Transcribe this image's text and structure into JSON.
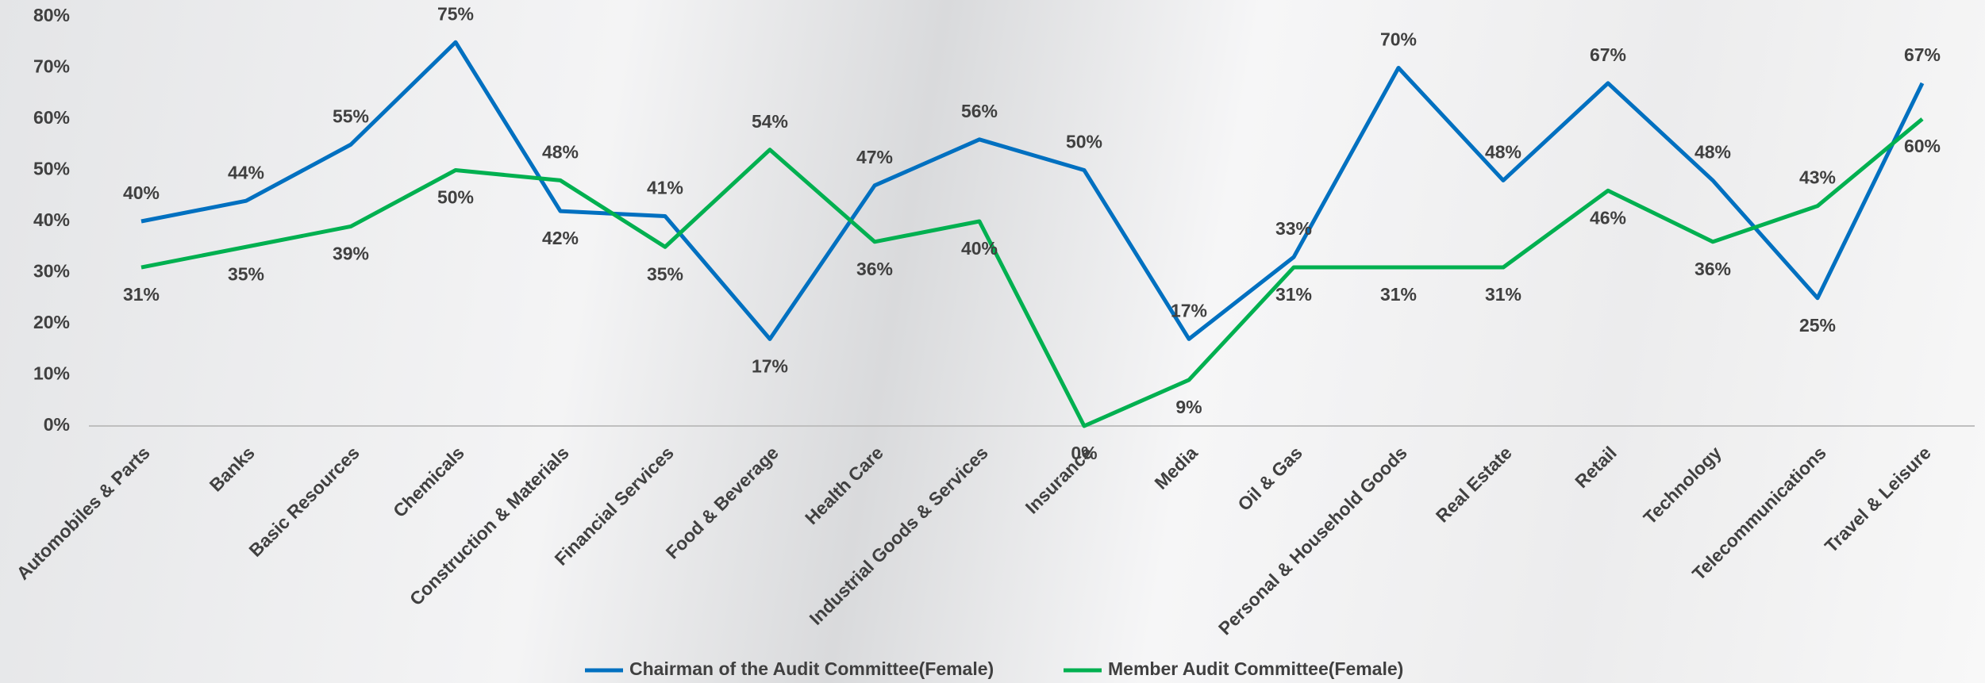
{
  "chart_data": {
    "type": "line",
    "categories": [
      "Automobiles & Parts",
      "Banks",
      "Basic Resources",
      "Chemicals",
      "Construction & Materials",
      "Financial Services",
      "Food & Beverage",
      "Health Care",
      "Industrial Goods & Services",
      "Insurance",
      "Media",
      "Oil & Gas",
      "Personal & Household Goods",
      "Real Estate",
      "Retail",
      "Technology",
      "Telecommunications",
      "Travel & Leisure"
    ],
    "series": [
      {
        "name": "Chairman of the Audit Committee(Female)",
        "color": "#0070c0",
        "values": [
          40,
          44,
          55,
          75,
          42,
          41,
          17,
          47,
          56,
          50,
          17,
          33,
          70,
          48,
          67,
          48,
          25,
          67
        ],
        "value_labels": [
          "40%",
          "44%",
          "55%",
          "75%",
          "42%",
          "41%",
          "17%",
          "47%",
          "56%",
          "50%",
          "17%",
          "33%",
          "70%",
          "48%",
          "67%",
          "48%",
          "25%",
          "67%"
        ]
      },
      {
        "name": "Member Audit Committee(Female)",
        "color": "#00b050",
        "values": [
          31,
          35,
          39,
          50,
          48,
          35,
          54,
          36,
          40,
          0,
          9,
          31,
          31,
          31,
          46,
          36,
          43,
          60
        ],
        "value_labels": [
          "31%",
          "35%",
          "39%",
          "50%",
          "48%",
          "35%",
          "54%",
          "36%",
          "40%",
          "0%",
          "9%",
          "31%",
          "31%",
          "31%",
          "46%",
          "36%",
          "43%",
          "60%"
        ]
      }
    ],
    "ylim": [
      0,
      80
    ],
    "yticks": [
      {
        "value": 0,
        "label": "0%"
      },
      {
        "value": 10,
        "label": "10%"
      },
      {
        "value": 20,
        "label": "20%"
      },
      {
        "value": 30,
        "label": "30%"
      },
      {
        "value": 40,
        "label": "40%"
      },
      {
        "value": 50,
        "label": "50%"
      },
      {
        "value": 60,
        "label": "60%"
      },
      {
        "value": 70,
        "label": "70%"
      },
      {
        "value": 80,
        "label": "80%"
      }
    ],
    "grid": false,
    "legend": "bottom"
  }
}
